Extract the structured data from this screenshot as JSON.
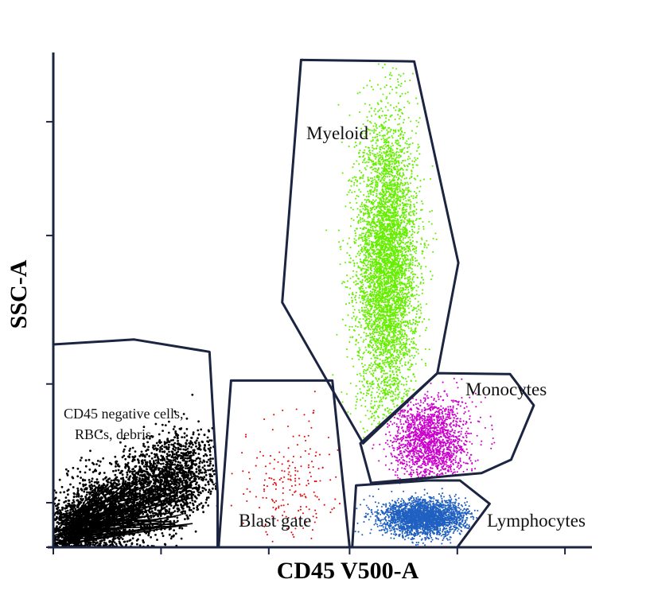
{
  "chart_data": {
    "type": "scatter",
    "title": "",
    "xlabel": "CD45 V500-A",
    "ylabel": "SSC-A",
    "xlim": [
      0,
      1000
    ],
    "ylim": [
      0,
      1000
    ],
    "grid": false,
    "legend": "none",
    "populations": [
      {
        "name": "Myeloid",
        "label": "Myeloid",
        "color": "#66ee00",
        "center_x": 620,
        "center_y": 570,
        "spread_x": 28,
        "spread_y": 150,
        "count": 5200,
        "gate": [
          [
            460,
            985
          ],
          [
            670,
            982
          ],
          [
            752,
            575
          ],
          [
            713,
            352
          ],
          [
            575,
            210
          ],
          [
            425,
            495
          ]
        ]
      },
      {
        "name": "Monocytes",
        "label": "Monocytes",
        "color": "#cc00cc",
        "center_x": 700,
        "center_y": 215,
        "spread_x": 36,
        "spread_y": 45,
        "count": 1700,
        "gate": [
          [
            570,
            210
          ],
          [
            713,
            352
          ],
          [
            848,
            350
          ],
          [
            892,
            287
          ],
          [
            850,
            177
          ],
          [
            795,
            150
          ],
          [
            590,
            130
          ]
        ]
      },
      {
        "name": "Lymphocytes",
        "label": "Lymphocytes",
        "color": "#2060c0",
        "center_x": 690,
        "center_y": 60,
        "spread_x": 40,
        "spread_y": 18,
        "count": 2600,
        "gate": [
          [
            562,
            125
          ],
          [
            695,
            135
          ],
          [
            755,
            135
          ],
          [
            810,
            88
          ],
          [
            750,
            0
          ],
          [
            555,
            0
          ]
        ]
      },
      {
        "name": "Blast gate",
        "label": "Blast gate",
        "color": "#e01010",
        "center_x": 445,
        "center_y": 130,
        "spread_x": 45,
        "spread_y": 65,
        "count": 190,
        "gate": [
          [
            330,
            337
          ],
          [
            518,
            337
          ],
          [
            550,
            0
          ],
          [
            307,
            0
          ]
        ]
      },
      {
        "name": "CD45 negative cells, RBCs, debris",
        "label_line1": "CD45 negative cells,",
        "label_line2": "RBCs, debris",
        "color": "#000000",
        "center_x": 120,
        "center_y": 50,
        "spread_x": 70,
        "spread_y": 30,
        "count": 3400,
        "gate": [
          [
            0,
            410
          ],
          [
            150,
            420
          ],
          [
            290,
            395
          ],
          [
            305,
            110
          ],
          [
            305,
            0
          ],
          [
            0,
            0
          ]
        ]
      }
    ],
    "x_ticks": [
      0,
      200,
      400,
      550,
      750,
      950
    ],
    "y_ticks": [
      0,
      90,
      330,
      630,
      860,
      1070
    ]
  }
}
